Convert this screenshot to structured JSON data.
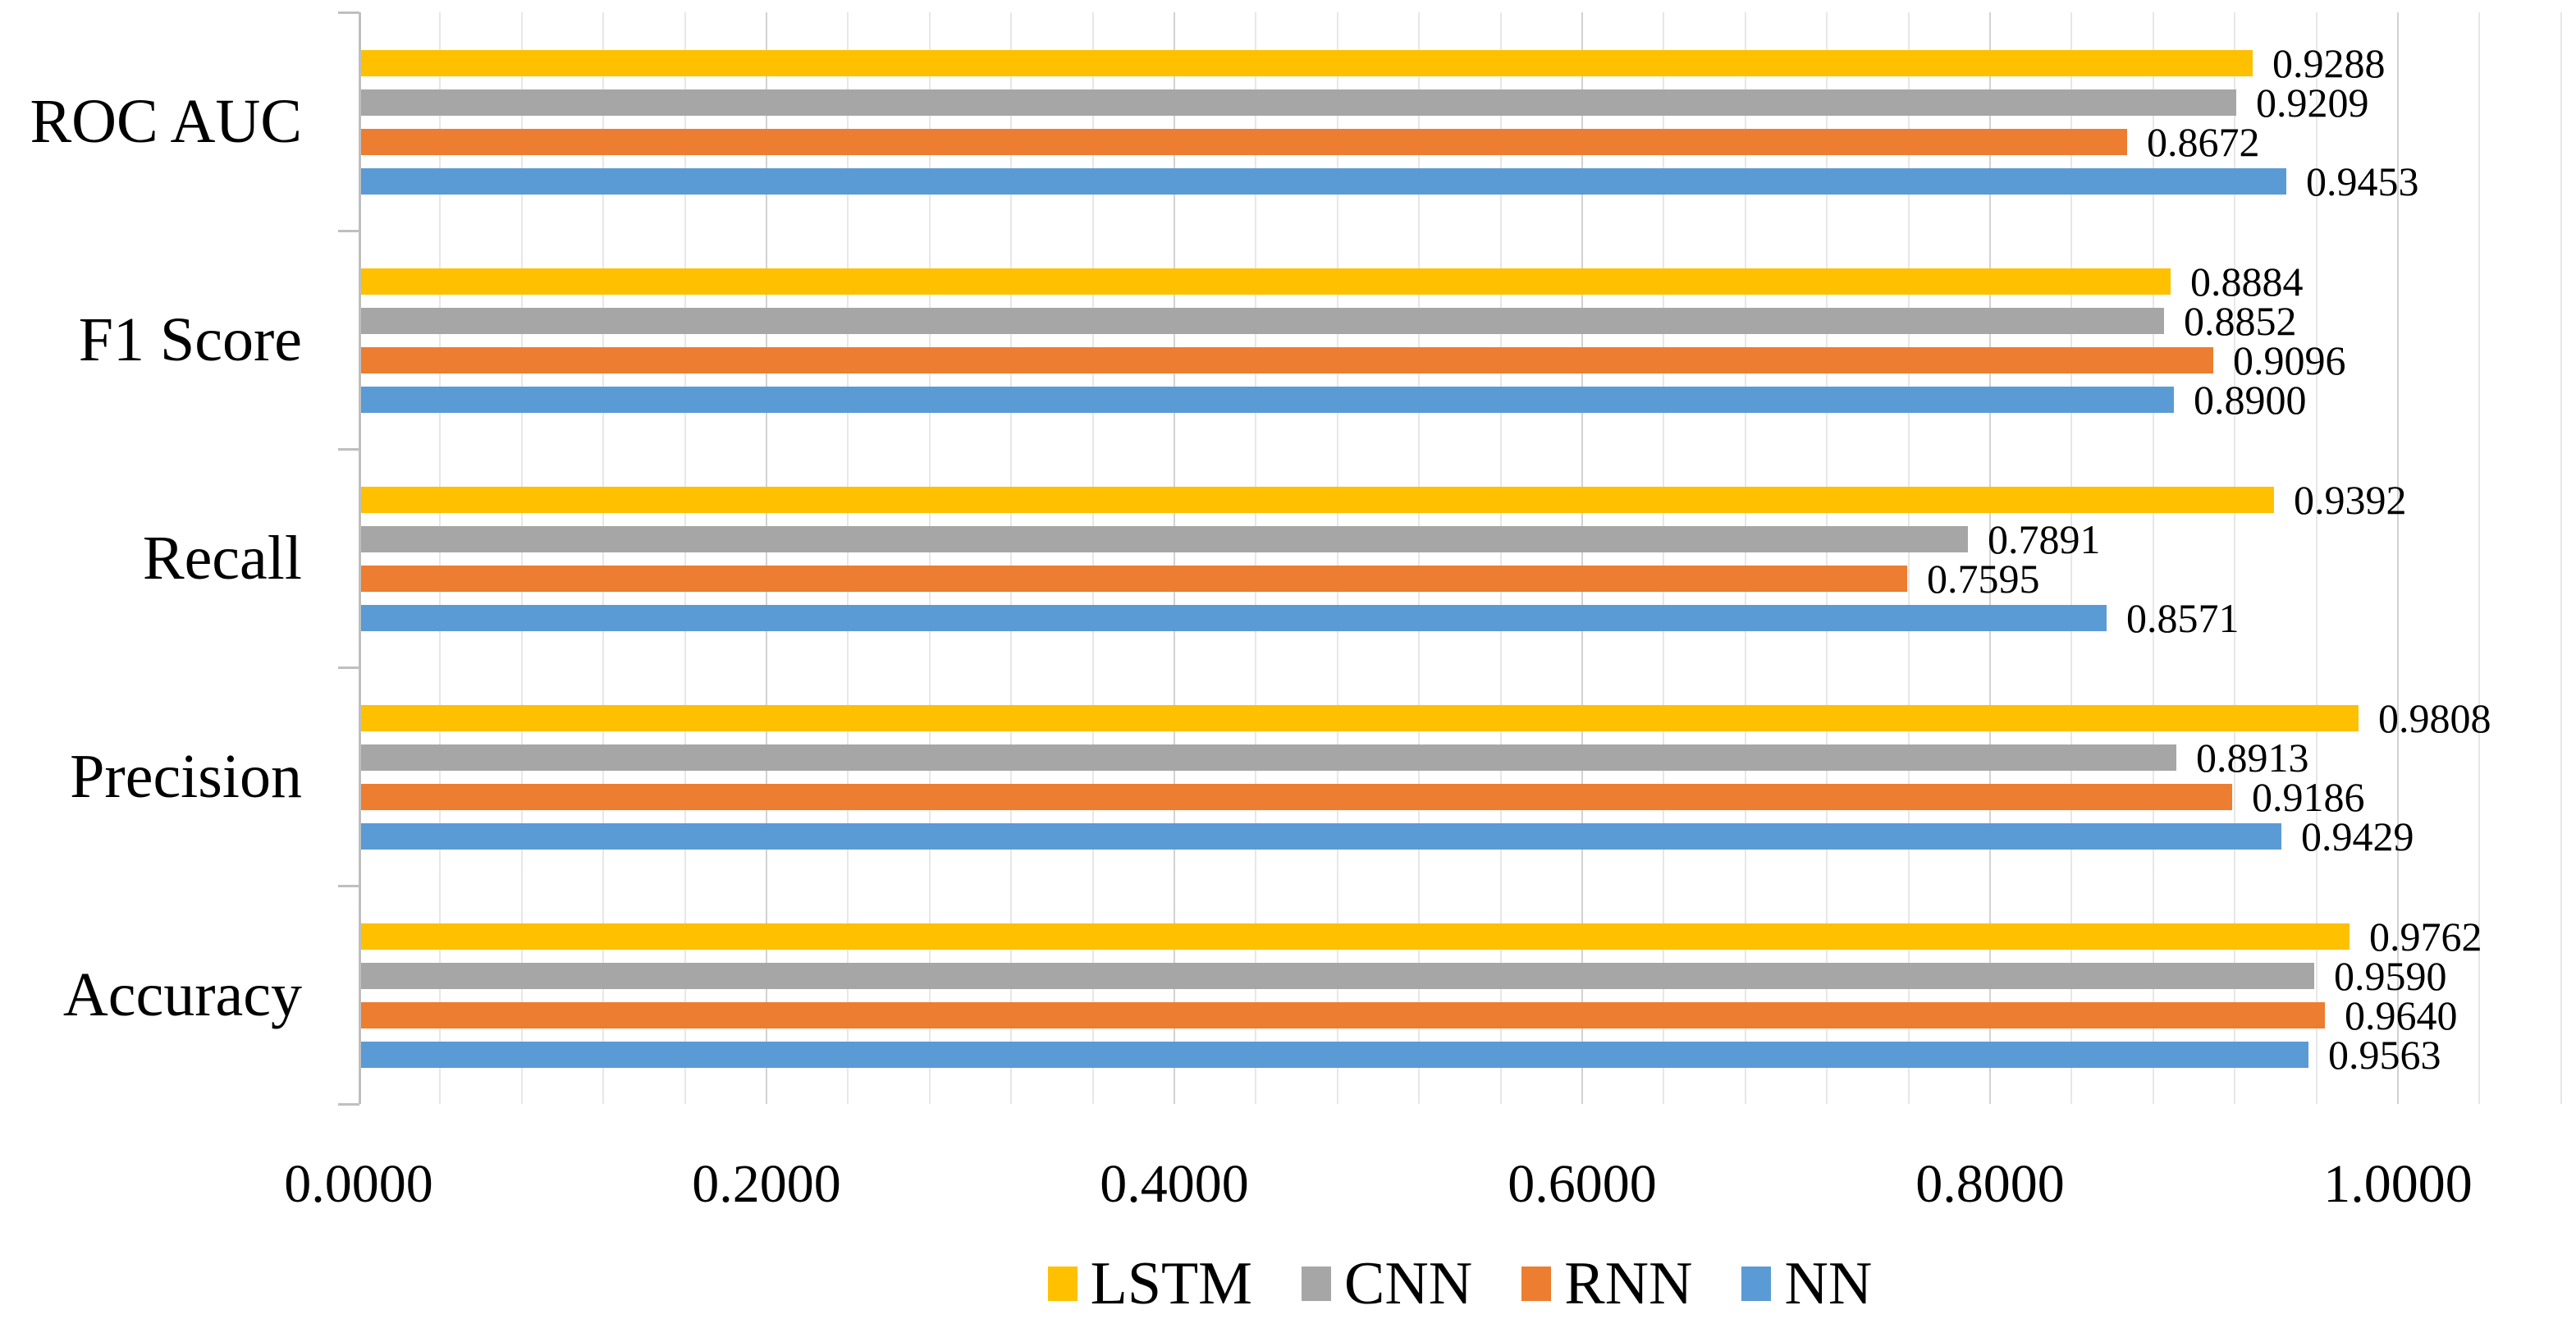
{
  "chart_data": {
    "type": "bar",
    "orientation": "horizontal",
    "title": "",
    "categories": [
      "ROC AUC",
      "F1 Score",
      "Recall",
      "Precision",
      "Accuracy"
    ],
    "series": [
      {
        "name": "LSTM",
        "color": "#FFC000",
        "values": [
          0.9288,
          0.8884,
          0.9392,
          0.9808,
          0.9762
        ]
      },
      {
        "name": "CNN",
        "color": "#A6A6A6",
        "values": [
          0.9209,
          0.8852,
          0.7891,
          0.8913,
          0.959
        ]
      },
      {
        "name": "RNN",
        "color": "#ED7D31",
        "values": [
          0.8672,
          0.9096,
          0.7595,
          0.9186,
          0.964
        ]
      },
      {
        "name": "NN",
        "color": "#5B9BD5",
        "values": [
          0.9453,
          0.89,
          0.8571,
          0.9429,
          0.9563
        ]
      }
    ],
    "data_labels": {
      "visible": true,
      "decimals": 4
    },
    "x_axis": {
      "min": 0,
      "max": 1.08,
      "major_step": 0.2,
      "minor_step": 0.04,
      "tick_values": [
        0.0,
        0.2,
        0.4,
        0.6,
        0.8,
        1.0
      ],
      "tick_labels": [
        "0.0000",
        "0.2000",
        "0.4000",
        "0.6000",
        "0.8000",
        "1.0000"
      ]
    },
    "grid": {
      "major": true,
      "minor": true
    },
    "legend": {
      "position": "bottom",
      "entries": [
        "LSTM",
        "CNN",
        "RNN",
        "NN"
      ]
    }
  },
  "colors": {
    "background": "#FFFFFF",
    "axis_line": "#BFBFBF",
    "major_gridline": "#D2D2D2",
    "minor_gridline": "#E7E7E7",
    "text": "#000000"
  }
}
